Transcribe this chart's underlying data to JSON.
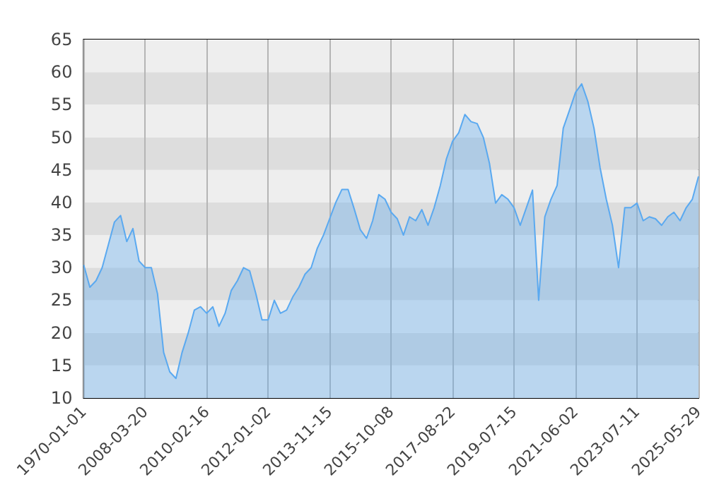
{
  "chart_data": {
    "type": "area",
    "categories": [
      "1970-01-01",
      null,
      null,
      null,
      null,
      null,
      null,
      null,
      null,
      null,
      "2008-03-20",
      null,
      null,
      null,
      null,
      null,
      null,
      null,
      null,
      null,
      "2010-02-16",
      null,
      null,
      null,
      null,
      null,
      null,
      null,
      null,
      null,
      "2012-01-02",
      null,
      null,
      null,
      null,
      null,
      null,
      null,
      null,
      null,
      "2013-11-15",
      null,
      null,
      null,
      null,
      null,
      null,
      null,
      null,
      null,
      "2015-10-08",
      null,
      null,
      null,
      null,
      null,
      null,
      null,
      null,
      null,
      "2017-08-22",
      null,
      null,
      null,
      null,
      null,
      null,
      null,
      null,
      null,
      "2019-07-15",
      null,
      null,
      null,
      null,
      null,
      null,
      null,
      null,
      null,
      "2021-06-02",
      null,
      null,
      null,
      null,
      null,
      null,
      null,
      null,
      null,
      "2023-07-11",
      null,
      null,
      null,
      null,
      null,
      null,
      null,
      null,
      null,
      "2025-05-29"
    ],
    "series": [
      {
        "color": "#5aa9f0",
        "values": [
          30.4,
          27,
          28,
          30,
          33.5,
          37,
          38,
          34,
          36,
          31,
          30,
          30,
          26,
          17,
          14,
          13,
          17,
          20,
          23.5,
          24,
          23,
          24,
          21,
          23,
          26.5,
          28,
          30,
          29.5,
          26,
          22,
          22,
          25,
          23,
          23.5,
          25.5,
          27,
          29,
          30,
          33,
          35,
          37.5,
          40,
          42,
          42,
          39,
          35.8,
          34.5,
          37.2,
          41.2,
          40.5,
          38.5,
          37.5,
          35,
          37.8,
          37.2,
          38.9,
          36.5,
          39.2,
          42.6,
          46.7,
          49.4,
          50.7,
          53.5,
          52.4,
          52.1,
          50,
          46,
          39.9,
          41.2,
          40.5,
          39.2,
          36.5,
          39.2,
          41.9,
          25,
          37.8,
          40.5,
          42.6,
          51.4,
          54.1,
          56.9,
          58.2,
          55.5,
          51.4,
          45.3,
          40.5,
          36.5,
          30,
          39.2,
          39.2,
          39.9,
          37.2,
          37.8,
          37.5,
          36.5,
          37.8,
          38.5,
          37.2,
          39.2,
          40.5,
          44
        ]
      }
    ],
    "ylim": [
      10,
      65
    ],
    "yticks": [
      10,
      15,
      20,
      25,
      30,
      35,
      40,
      45,
      50,
      55,
      60,
      65
    ],
    "grid": true
  }
}
